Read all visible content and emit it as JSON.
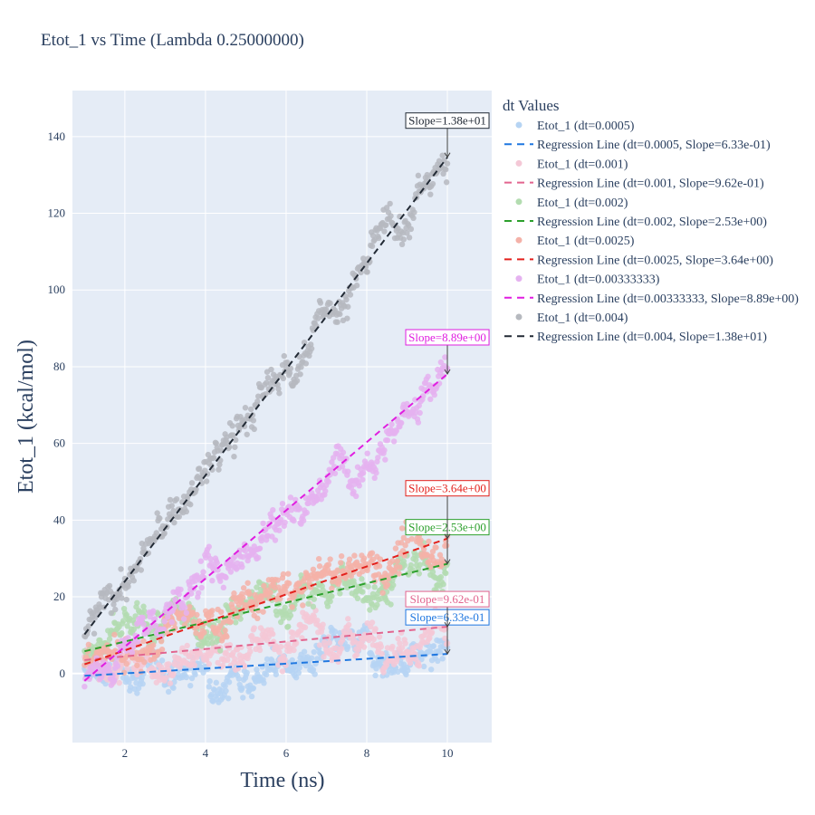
{
  "chart_data": {
    "type": "scatter",
    "title": "Etot_1 vs Time (Lambda 0.25000000)",
    "xlabel": "Time (ns)",
    "ylabel": "Etot_1 (kcal/mol)",
    "xlim": [
      0.7,
      11.1
    ],
    "ylim": [
      -18,
      152
    ],
    "xticks": [
      2,
      4,
      6,
      8,
      10
    ],
    "yticks": [
      0,
      20,
      40,
      60,
      80,
      100,
      120,
      140
    ],
    "grid": true,
    "legend_title": "dt Values",
    "legend_position": "right",
    "series": [
      {
        "scatter_name": "Etot_1 (dt=0.0005)",
        "line_name": "Regression Line (dt=0.0005, Slope=6.33e-01)",
        "annotation": "Slope=6.33e-01",
        "color": "#1f77e0",
        "marker_color": "#b6d4f3",
        "slope": 0.633,
        "line_start": [
          1,
          -0.6
        ],
        "line_end": [
          10,
          5.1
        ],
        "noise": 4.5
      },
      {
        "scatter_name": "Etot_1 (dt=0.001)",
        "line_name": "Regression Line (dt=0.001, Slope=9.62e-01)",
        "annotation": "Slope=9.62e-01",
        "color": "#e2658f",
        "marker_color": "#f4c8d6",
        "slope": 0.962,
        "line_start": [
          1,
          3.5
        ],
        "line_end": [
          10,
          12.2
        ],
        "noise": 4.5
      },
      {
        "scatter_name": "Etot_1 (dt=0.002)",
        "line_name": "Regression Line (dt=0.002, Slope=2.53e+00)",
        "annotation": "Slope=2.53e+00",
        "color": "#2ca02c",
        "marker_color": "#b3dcb0",
        "slope": 2.53,
        "line_start": [
          1,
          5.8
        ],
        "line_end": [
          10,
          28.6
        ],
        "noise": 5
      },
      {
        "scatter_name": "Etot_1 (dt=0.0025)",
        "line_name": "Regression Line (dt=0.0025, Slope=3.64e+00)",
        "annotation": "Slope=3.64e+00",
        "color": "#e3211c",
        "marker_color": "#f4b1a8",
        "slope": 3.64,
        "line_start": [
          1,
          2.4
        ],
        "line_end": [
          10,
          35.2
        ],
        "noise": 5
      },
      {
        "scatter_name": "Etot_1 (dt=0.00333333)",
        "line_name": "Regression Line (dt=0.00333333, Slope=8.89e+00)",
        "annotation": "Slope=8.89e+00",
        "color": "#e01ee0",
        "marker_color": "#e5b2f0",
        "slope": 8.89,
        "line_start": [
          1,
          -1.9
        ],
        "line_end": [
          10,
          78.1
        ],
        "noise": 5
      },
      {
        "scatter_name": "Etot_1 (dt=0.004)",
        "line_name": "Regression Line (dt=0.004, Slope=1.38e+01)",
        "annotation": "Slope=1.38e+01",
        "color": "#222a35",
        "marker_color": "#b6b9bf",
        "slope": 13.8,
        "line_start": [
          1,
          10.2
        ],
        "line_end": [
          10,
          134.6
        ],
        "noise": 5
      }
    ]
  }
}
